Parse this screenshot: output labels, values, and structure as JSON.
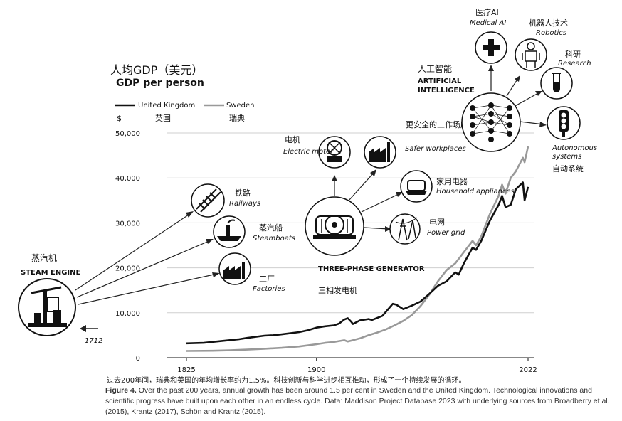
{
  "chart_data": {
    "type": "line",
    "title_cn": "人均GDP（美元）",
    "title_en": "GDP per person",
    "ylabel": "$",
    "ylim": [
      0,
      50000
    ],
    "yticks": [
      0,
      10000,
      20000,
      30000,
      40000,
      50000
    ],
    "ytick_labels": [
      "0",
      "10,000",
      "20,000",
      "30,000",
      "40,000",
      "50,000"
    ],
    "xlim": [
      1825,
      2022
    ],
    "xticks": [
      1825,
      1900,
      2022
    ],
    "xtick_labels": [
      "1825",
      "1900",
      "2022"
    ],
    "legend_position": "top-left",
    "series": [
      {
        "name": "United Kingdom",
        "name_cn": "英国",
        "color": "#111111",
        "x": [
          1825,
          1835,
          1845,
          1855,
          1860,
          1870,
          1875,
          1880,
          1890,
          1895,
          1900,
          1905,
          1910,
          1913,
          1916,
          1918,
          1920,
          1921,
          1925,
          1930,
          1932,
          1938,
          1940,
          1944,
          1946,
          1950,
          1955,
          1960,
          1965,
          1970,
          1975,
          1980,
          1982,
          1985,
          1990,
          1992,
          1995,
          2000,
          2005,
          2007,
          2009,
          2012,
          2015,
          2019,
          2020,
          2022
        ],
        "y": [
          3200,
          3300,
          3700,
          4100,
          4400,
          4900,
          5000,
          5200,
          5700,
          6100,
          6700,
          7000,
          7200,
          7600,
          8500,
          8800,
          8000,
          7500,
          8300,
          8600,
          8400,
          9300,
          10200,
          12000,
          11800,
          10800,
          11600,
          12500,
          14200,
          16000,
          17000,
          19000,
          18500,
          21000,
          24500,
          24000,
          26000,
          30500,
          34000,
          36000,
          33500,
          34000,
          37500,
          39000,
          35000,
          38000
        ]
      },
      {
        "name": "Sweden",
        "name_cn": "瑞典",
        "color": "#999999",
        "x": [
          1825,
          1840,
          1850,
          1860,
          1870,
          1880,
          1890,
          1900,
          1905,
          1910,
          1913,
          1916,
          1918,
          1920,
          1925,
          1930,
          1935,
          1940,
          1945,
          1950,
          1955,
          1960,
          1965,
          1970,
          1975,
          1980,
          1985,
          1990,
          1992,
          1995,
          2000,
          2005,
          2007,
          2009,
          2012,
          2015,
          2019,
          2020,
          2022
        ],
        "y": [
          1500,
          1550,
          1650,
          1800,
          2000,
          2200,
          2500,
          3000,
          3300,
          3500,
          3700,
          3900,
          3600,
          3800,
          4300,
          5000,
          5600,
          6300,
          7200,
          8200,
          9500,
          11500,
          14000,
          17000,
          19500,
          21000,
          23500,
          26000,
          25000,
          27000,
          32000,
          36000,
          38500,
          36500,
          40000,
          41500,
          44500,
          43500,
          47000
        ]
      }
    ],
    "annotations": [
      {
        "cn": "蒸汽机",
        "en": "STEAM ENGINE",
        "icon": "steam-engine-icon"
      },
      {
        "year": "1712"
      },
      {
        "cn": "铁路",
        "en": "Railways",
        "icon": "railway-track-icon"
      },
      {
        "cn": "蒸汽船",
        "en": "Steamboats",
        "icon": "steamboat-icon"
      },
      {
        "cn": "工厂",
        "en": "Factories",
        "icon": "factory-icon"
      },
      {
        "cn": "三相发电机",
        "en": "THREE-PHASE GENERATOR",
        "icon": "generator-icon"
      },
      {
        "cn": "电机",
        "en": "Electric motor",
        "icon": "electric-motor-icon"
      },
      {
        "cn": "更安全的工作场所",
        "en": "Safer workplaces",
        "icon": "safe-factory-icon"
      },
      {
        "cn": "家用电器",
        "en": "Household appliances",
        "icon": "appliance-icon"
      },
      {
        "cn": "电网",
        "en": "Power grid",
        "icon": "power-grid-icon"
      },
      {
        "cn": "人工智能",
        "en": "ARTIFICIAL INTELLIGENCE",
        "icon": "neural-network-icon"
      },
      {
        "cn": "医疗AI",
        "en": "Medical AI",
        "icon": "medical-cross-icon"
      },
      {
        "cn": "机器人技术",
        "en": "Robotics",
        "icon": "robot-icon"
      },
      {
        "cn": "科研",
        "en": "Research",
        "icon": "test-tube-icon"
      },
      {
        "cn": "自动系统",
        "en": "Autonomous systems",
        "icon": "traffic-light-icon"
      }
    ]
  },
  "caption": {
    "cn": "过去200年间，瑞典和英国的年均增长率约为1.5%。科技创新与科学进步相互推动，形成了一个持续发展的循环。",
    "label": "Figure 4.",
    "text": "Over the past 200 years, annual growth has been around 1.5 per cent in Sweden and the United Kingdom. Technological innovations and scientific progress have built upon each other in an endless cycle. Data: Maddison Project Database 2023 with underlying sources from Broadberry et al. (2015), Krantz (2017), Schön and Krantz (2015)."
  }
}
